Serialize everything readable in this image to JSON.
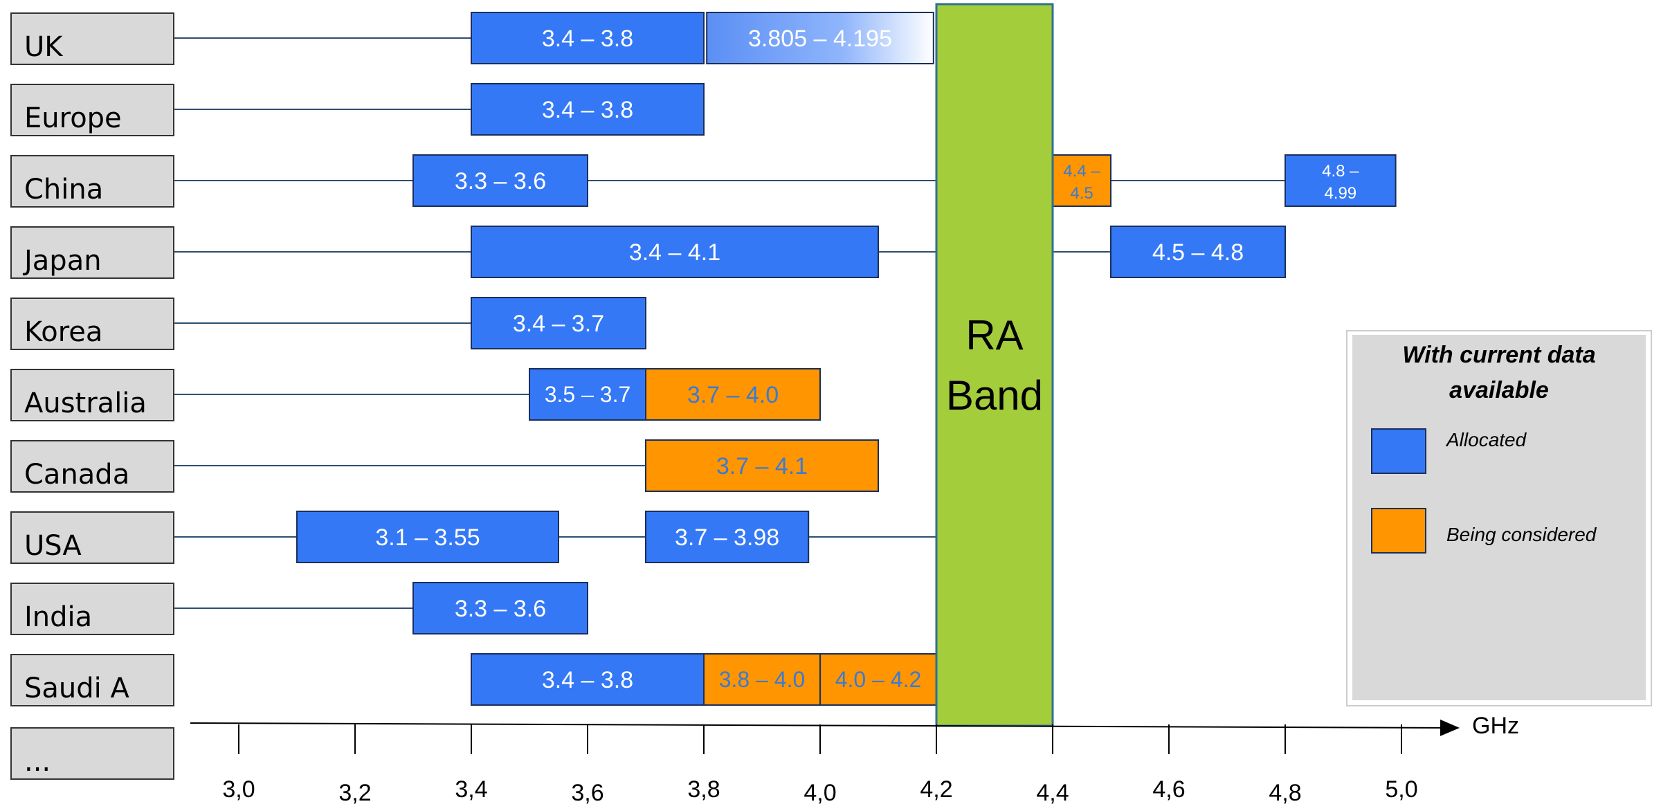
{
  "chart_data": {
    "type": "range_bar",
    "x_unit": "GHz",
    "xlim": [
      3.0,
      5.0
    ],
    "x_ticks": [
      "3,0",
      "3,2",
      "3,4",
      "3,6",
      "3,8",
      "4,0",
      "4,2",
      "4,4",
      "4,6",
      "4,8",
      "5,0"
    ],
    "x_tick_values": [
      3.0,
      3.2,
      3.4,
      3.6,
      3.8,
      4.0,
      4.2,
      4.4,
      4.6,
      4.8,
      5.0
    ],
    "colors": {
      "allocated": "#3478f6",
      "considered": "#ff9500",
      "ra_band": "#a3cd3b",
      "label_box": "#d9d9d9",
      "legend_bg": "#d9d9d9"
    },
    "ra_band": {
      "label_line1": "RA",
      "label_line2": "Band",
      "start": 4.2,
      "end": 4.4
    },
    "countries": [
      {
        "name": "UK",
        "line_end": 3.4,
        "bands": [
          {
            "label": "3.4 – 3.8",
            "start": 3.4,
            "end": 3.8,
            "status": "allocated"
          },
          {
            "label": "3.805 – 4.195",
            "start": 3.805,
            "end": 4.195,
            "status": "allocated_fading"
          }
        ]
      },
      {
        "name": "Europe",
        "line_end": 3.4,
        "bands": [
          {
            "label": "3.4 – 3.8",
            "start": 3.4,
            "end": 3.8,
            "status": "allocated"
          }
        ]
      },
      {
        "name": "China",
        "line_end": 4.2,
        "post_line": [
          4.4,
          4.8
        ],
        "bands": [
          {
            "label": "3.3 – 3.6",
            "start": 3.3,
            "end": 3.6,
            "status": "allocated"
          },
          {
            "label": "4.4 – 4.5",
            "label_lines": [
              "4.4 –",
              "4.5"
            ],
            "start": 4.4,
            "end": 4.5,
            "status": "considered"
          },
          {
            "label": "4.8 – 4.99",
            "label_lines": [
              "4.8 –",
              "4.99"
            ],
            "start": 4.8,
            "end": 4.99,
            "status": "allocated"
          }
        ]
      },
      {
        "name": "Japan",
        "line_end": 4.2,
        "post_line": [
          4.4,
          4.5
        ],
        "bands": [
          {
            "label": "3.4 – 4.1",
            "start": 3.4,
            "end": 4.1,
            "status": "allocated"
          },
          {
            "label": "4.5 – 4.8",
            "start": 4.5,
            "end": 4.8,
            "status": "allocated"
          }
        ]
      },
      {
        "name": "Korea",
        "line_end": 3.4,
        "bands": [
          {
            "label": "3.4 – 3.7",
            "start": 3.4,
            "end": 3.7,
            "status": "allocated"
          }
        ]
      },
      {
        "name": "Australia",
        "line_end": 3.5,
        "bands": [
          {
            "label": "3.5 – 3.7",
            "start": 3.5,
            "end": 3.7,
            "status": "allocated"
          },
          {
            "label": "3.7 – 4.0",
            "start": 3.7,
            "end": 4.0,
            "status": "considered"
          }
        ]
      },
      {
        "name": "Canada",
        "line_end": 3.7,
        "bands": [
          {
            "label": "3.7 – 4.1",
            "start": 3.7,
            "end": 4.1,
            "status": "considered"
          }
        ]
      },
      {
        "name": "USA",
        "line_end": 4.2,
        "bands": [
          {
            "label": "3.1 – 3.55",
            "start": 3.1,
            "end": 3.55,
            "status": "allocated"
          },
          {
            "label": "3.7 – 3.98",
            "start": 3.7,
            "end": 3.98,
            "status": "allocated"
          }
        ]
      },
      {
        "name": "India",
        "line_end": 3.3,
        "bands": [
          {
            "label": "3.3 – 3.6",
            "start": 3.3,
            "end": 3.6,
            "status": "allocated"
          }
        ]
      },
      {
        "name": "Saudi A",
        "line_end": null,
        "bands": [
          {
            "label": "3.4 – 3.8",
            "start": 3.4,
            "end": 3.8,
            "status": "allocated"
          },
          {
            "label": "3.8 – 4.0",
            "start": 3.8,
            "end": 4.0,
            "status": "considered"
          },
          {
            "label": "4.0 – 4.2",
            "start": 4.0,
            "end": 4.2,
            "status": "considered"
          }
        ]
      },
      {
        "name": "...",
        "line_end": null,
        "bands": []
      }
    ],
    "legend": {
      "title": "With current data available",
      "items": [
        {
          "label": "Allocated",
          "status": "allocated"
        },
        {
          "label": "Being considered",
          "status": "considered"
        }
      ]
    }
  }
}
